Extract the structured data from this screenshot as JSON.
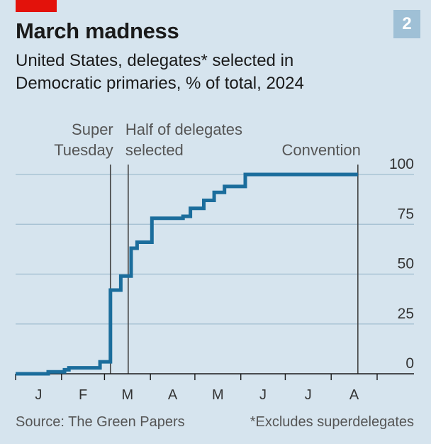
{
  "badge": "2",
  "footer": {
    "source": "Source: The Green Papers",
    "note": "*Excludes superdelegates"
  },
  "chart_data": {
    "type": "line",
    "title": "March madness",
    "subtitle": "United States, delegates* selected in Democratic primaries, % of total, 2024",
    "xlabel": "",
    "ylabel": "",
    "ylim": [
      0,
      100
    ],
    "yticks": [
      0,
      25,
      50,
      75,
      100
    ],
    "xlim": [
      "2024-01-01",
      "2024-09-01"
    ],
    "month_labels": [
      "J",
      "F",
      "M",
      "A",
      "M",
      "J",
      "J",
      "A"
    ],
    "grid": true,
    "series": [
      {
        "color": "#1b6d9c",
        "step": true,
        "x": [
          "2024-01-01",
          "2024-01-23",
          "2024-02-03",
          "2024-02-06",
          "2024-02-27",
          "2024-03-05",
          "2024-03-12",
          "2024-03-19",
          "2024-03-23",
          "2024-04-02",
          "2024-04-23",
          "2024-04-28",
          "2024-05-07",
          "2024-05-14",
          "2024-05-21",
          "2024-06-04",
          "2024-08-19"
        ],
        "y": [
          0,
          1,
          2,
          3,
          6,
          42,
          49,
          63,
          66,
          78,
          79,
          83,
          87,
          91,
          94,
          100,
          100
        ]
      }
    ],
    "annotations": [
      {
        "date": "2024-03-05",
        "lines": [
          "Super",
          "Tuesday"
        ],
        "align": "end"
      },
      {
        "date": "2024-03-17",
        "lines": [
          "Half of delegates",
          "selected"
        ],
        "align": "start"
      },
      {
        "date": "2024-08-19",
        "lines": [
          "Convention"
        ],
        "align": "end"
      }
    ]
  }
}
